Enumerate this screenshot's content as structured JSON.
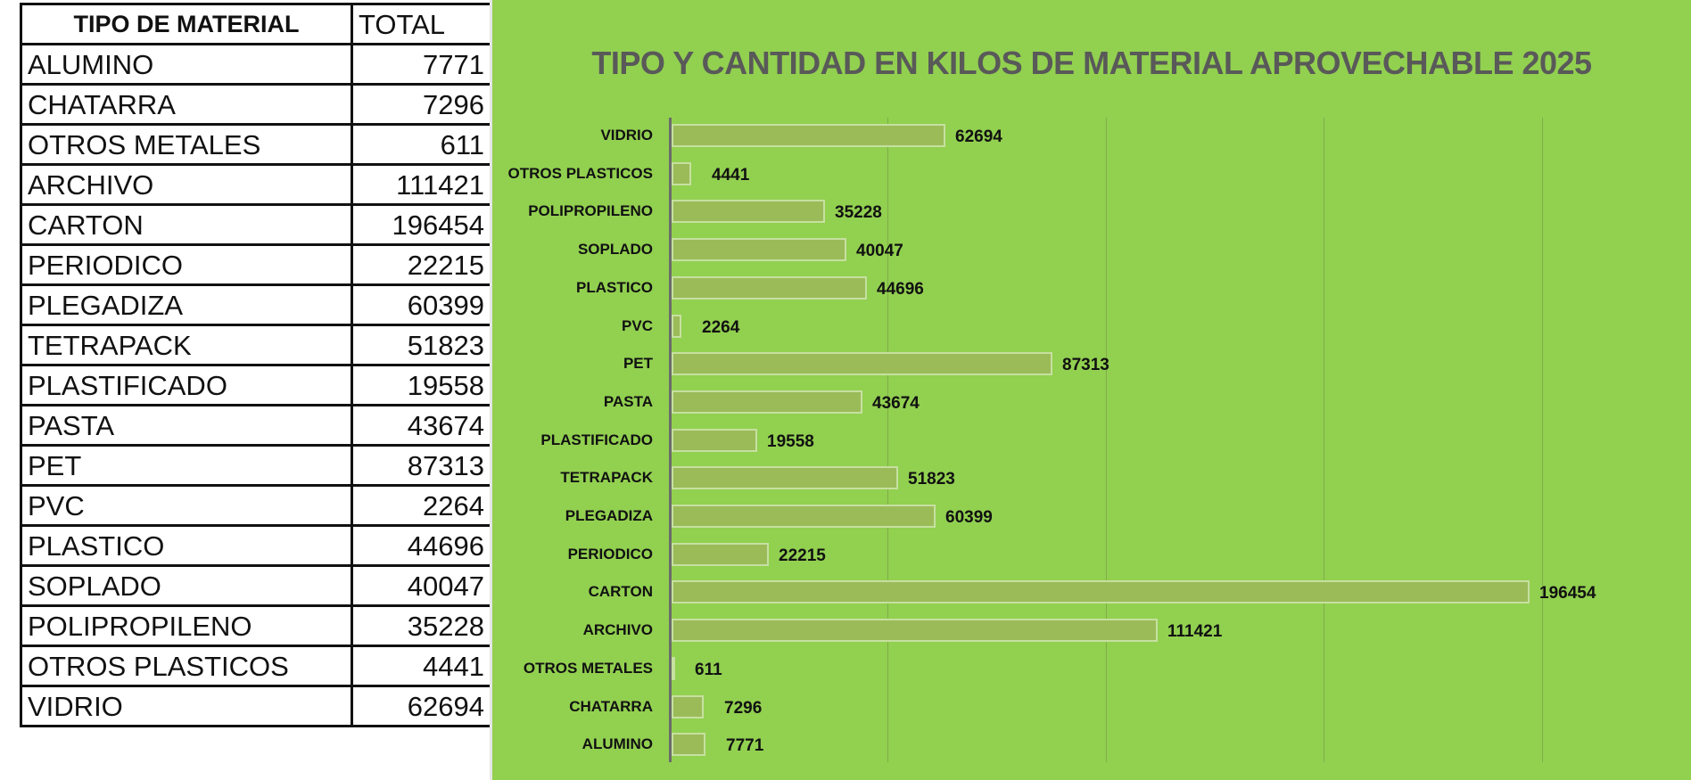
{
  "table": {
    "headers": {
      "material": "TIPO DE MATERIAL",
      "total": "TOTAL"
    },
    "rows": [
      {
        "material": "ALUMINO",
        "total": "7771"
      },
      {
        "material": "CHATARRA",
        "total": "7296"
      },
      {
        "material": "OTROS METALES",
        "total": "611"
      },
      {
        "material": "ARCHIVO",
        "total": "111421"
      },
      {
        "material": "CARTON",
        "total": "196454"
      },
      {
        "material": "PERIODICO",
        "total": "22215"
      },
      {
        "material": "PLEGADIZA",
        "total": "60399"
      },
      {
        "material": "TETRAPACK",
        "total": "51823"
      },
      {
        "material": "PLASTIFICADO",
        "total": "19558"
      },
      {
        "material": "PASTA",
        "total": "43674"
      },
      {
        "material": "PET",
        "total": "87313"
      },
      {
        "material": "PVC",
        "total": "2264"
      },
      {
        "material": "PLASTICO",
        "total": "44696"
      },
      {
        "material": "SOPLADO",
        "total": "40047"
      },
      {
        "material": "POLIPROPILENO",
        "total": "35228"
      },
      {
        "material": "OTROS PLASTICOS",
        "total": "4441"
      },
      {
        "material": "VIDRIO",
        "total": "62694"
      }
    ]
  },
  "chart_data": {
    "type": "bar",
    "orientation": "horizontal",
    "title": "TIPO Y CANTIDAD EN KILOS DE MATERIAL APROVECHABLE 2025",
    "xlabel": "",
    "ylabel": "",
    "categories": [
      "VIDRIO",
      "OTROS PLASTICOS",
      "POLIPROPILENO",
      "SOPLADO",
      "PLASTICO",
      "PVC",
      "PET",
      "PASTA",
      "PLASTIFICADO",
      "TETRAPACK",
      "PLEGADIZA",
      "PERIODICO",
      "CARTON",
      "ARCHIVO",
      "OTROS METALES",
      "CHATARRA",
      "ALUMINO"
    ],
    "values": [
      62694,
      4441,
      35228,
      40047,
      44696,
      2264,
      87313,
      43674,
      19558,
      51823,
      60399,
      22215,
      196454,
      111421,
      611,
      7296,
      7771
    ],
    "xlim": [
      0,
      200000
    ],
    "gridlines_x": [
      50000,
      100000,
      150000,
      200000
    ],
    "grid": true,
    "data_labels": true,
    "legend": "none",
    "colors": {
      "background": "#92d050",
      "bar_fill": "#9bbb59",
      "bar_border": "#c6e0a0",
      "title": "#595959",
      "axis": "#6b6b6b"
    }
  }
}
